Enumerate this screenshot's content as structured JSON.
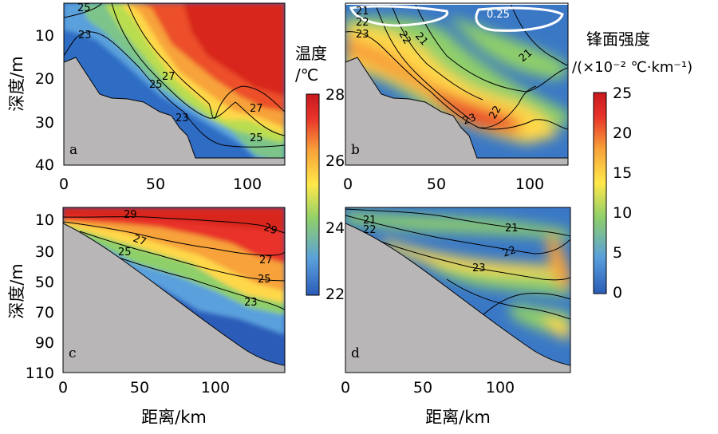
{
  "figure": {
    "colorbar_temp": {
      "title": "温度",
      "unit": "/℃",
      "ticks": [
        "28",
        "26",
        "24",
        "22"
      ],
      "range": [
        22,
        28
      ],
      "colors": [
        "#2b5cb8",
        "#5aa0dc",
        "#8fcf6a",
        "#ffe84a",
        "#f7a23a",
        "#e8332a",
        "#c8191e"
      ]
    },
    "colorbar_front": {
      "title": "锋面强度",
      "unit": "/(×10⁻² ℃·km⁻¹)",
      "ticks": [
        "25",
        "20",
        "15",
        "10",
        "5",
        "0"
      ],
      "range": [
        0,
        25
      ],
      "colors": [
        "#2b5cb8",
        "#5aa0dc",
        "#8fcf6a",
        "#ffe84a",
        "#f7a23a",
        "#e8332a",
        "#c8191e"
      ]
    }
  },
  "chart_data": [
    {
      "panel": "a",
      "type": "heatmap",
      "variable": "温度",
      "ylabel": "深度/m",
      "xlabel": "",
      "xlim": [
        0,
        120
      ],
      "ylim": [
        40,
        3
      ],
      "xticks": [
        "0",
        "50",
        "100"
      ],
      "yticks": [
        "10",
        "20",
        "30",
        "40"
      ],
      "contours": [
        "25",
        "23",
        "27",
        "25",
        "23",
        "27",
        "25"
      ]
    },
    {
      "panel": "b",
      "type": "heatmap",
      "variable": "锋面强度",
      "xlabel": "",
      "xlim": [
        0,
        120
      ],
      "xticks": [
        "0",
        "50",
        "100"
      ],
      "contours": [
        "21",
        "22",
        "23",
        "21",
        "22",
        "21",
        "23",
        "22"
      ],
      "highlight_contour": "0.25"
    },
    {
      "panel": "c",
      "type": "heatmap",
      "variable": "温度",
      "ylabel": "深度/m",
      "xlabel": "距离/km",
      "xlim": [
        0,
        145
      ],
      "ylim": [
        110,
        3
      ],
      "xticks": [
        "0",
        "50",
        "100"
      ],
      "yticks": [
        "10",
        "30",
        "50",
        "70",
        "90",
        "110"
      ],
      "contours": [
        "29",
        "29",
        "27",
        "27",
        "25",
        "25",
        "23"
      ]
    },
    {
      "panel": "d",
      "type": "heatmap",
      "variable": "锋面强度",
      "xlabel": "距离/km",
      "xlim": [
        0,
        145
      ],
      "xticks": [
        "0",
        "50",
        "100"
      ],
      "contours": [
        "21",
        "22",
        "21",
        "22",
        "23"
      ]
    }
  ]
}
